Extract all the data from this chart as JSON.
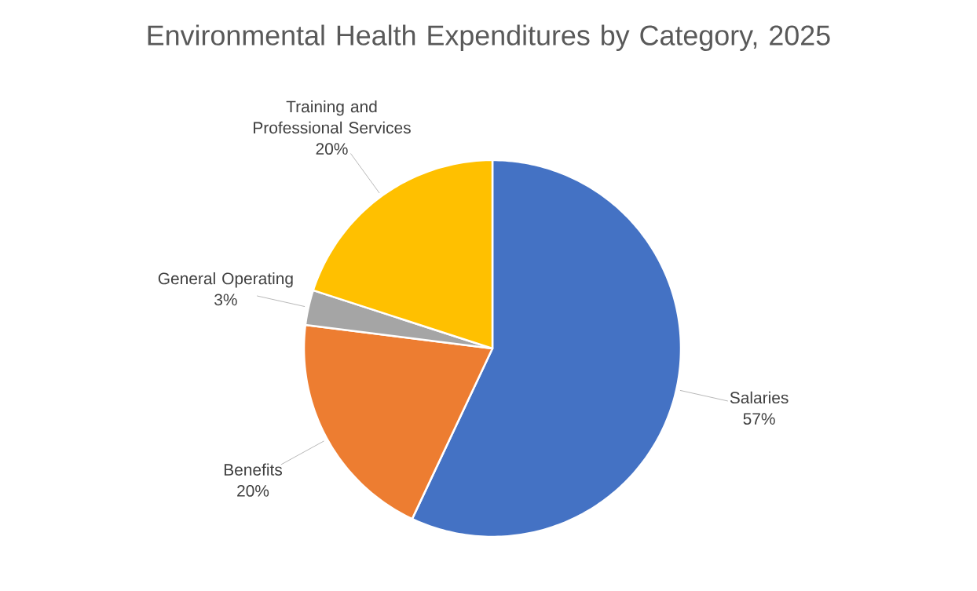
{
  "chart_data": {
    "type": "pie",
    "title": "Environmental Health Expenditures by Category, 2025",
    "categories": [
      "Salaries",
      "Benefits",
      "General Operating",
      "Training and Professional Services"
    ],
    "values": [
      57,
      20,
      3,
      20
    ],
    "colors": [
      "#4472c4",
      "#ed7d31",
      "#a5a5a5",
      "#ffc000"
    ],
    "value_labels": [
      "57%",
      "20%",
      "3%",
      "20%"
    ]
  }
}
